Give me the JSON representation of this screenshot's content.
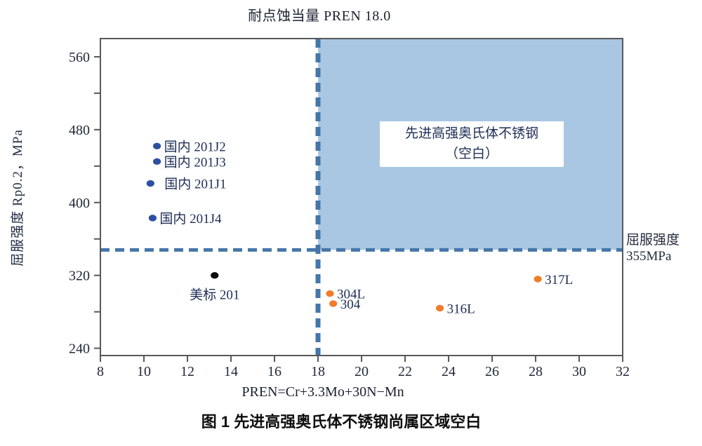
{
  "figure": {
    "title_top": "耐点蚀当量 PREN 18.0",
    "ylabel": "屈服强度 Rp0.2，MPa",
    "xlabel": "PREN=Cr+3.3Mo+30N−Mn",
    "caption": "图 1 先进高强奥氏体不锈钢尚属区域空白",
    "right_threshold_label_line1": "屈服强度",
    "right_threshold_label_line2": "355MPa",
    "region_label_line1": "先进高强奥氏体不锈钢",
    "region_label_line2": "（空白）"
  },
  "chart_data": {
    "type": "scatter",
    "title": "耐点蚀当量 PREN 18.0",
    "xlabel": "PREN=Cr+3.3Mo+30N−Mn",
    "ylabel": "屈服强度 Rp0.2，MPa",
    "xlim": [
      8,
      32
    ],
    "ylim": [
      232,
      580
    ],
    "grid": false,
    "x_ticks": [
      8,
      10,
      12,
      14,
      16,
      18,
      20,
      22,
      24,
      26,
      28,
      30,
      32
    ],
    "y_ticks_labeled": [
      240,
      320,
      400,
      480,
      560
    ],
    "y_ticks_minor": [
      280,
      360,
      440,
      520
    ],
    "series": [
      {
        "name": "blue-domestic-201",
        "color": "#2d4fa1",
        "points": [
          {
            "label": "国内 201J2",
            "x": 10.6,
            "y": 462,
            "label_side": "right"
          },
          {
            "label": "国内 201J3",
            "x": 10.6,
            "y": 445,
            "label_side": "right"
          },
          {
            "label": "国内 201J1",
            "x": 10.3,
            "y": 421,
            "label_side": "right-far"
          },
          {
            "label": "国内 201J4",
            "x": 10.4,
            "y": 383,
            "label_side": "right"
          }
        ]
      },
      {
        "name": "black-us-standard",
        "color": "#0c0c0c",
        "points": [
          {
            "label": "美标 201",
            "x": 13.25,
            "y": 320,
            "label_side": "below"
          }
        ]
      },
      {
        "name": "orange-300-series",
        "color": "#ee7c2b",
        "points": [
          {
            "label": "304L",
            "x": 18.55,
            "y": 300,
            "label_side": "right"
          },
          {
            "label": "304",
            "x": 18.7,
            "y": 289,
            "label_side": "right"
          },
          {
            "label": "316L",
            "x": 23.6,
            "y": 284,
            "label_side": "right"
          },
          {
            "label": "317L",
            "x": 28.1,
            "y": 316,
            "label_side": "right"
          }
        ]
      }
    ],
    "thresholds": {
      "vertical": {
        "x": 18,
        "label": "耐点蚀当量 PREN 18.0"
      },
      "horizontal": {
        "value": 355,
        "drawn_at": 348,
        "label": "屈服强度 355MPa"
      }
    },
    "shaded_region": {
      "x_from": 18,
      "x_to": 32,
      "y_from": 348,
      "y_to": 580,
      "label": "先进高强奥氏体不锈钢（空白）"
    }
  },
  "colors": {
    "shade": "#a9c7e2",
    "dash_line": "#4576a8",
    "axis": "#57585b",
    "tick_text": "#23283a",
    "point_label_text": "#1d2d55"
  }
}
